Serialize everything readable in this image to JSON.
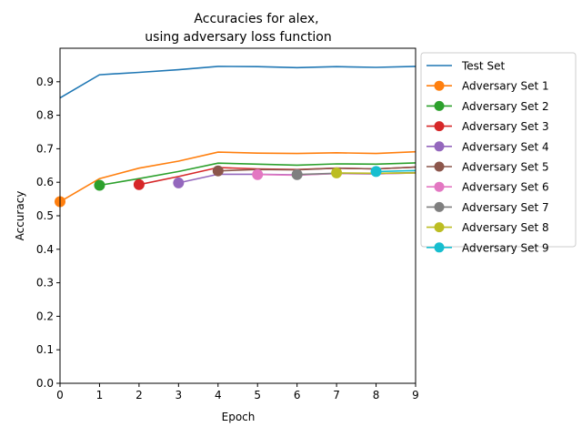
{
  "chart_data": {
    "type": "line",
    "title_line1": "Accuracies for alex,",
    "title_line2": "using adversary loss function",
    "xlabel": "Epoch",
    "ylabel": "Accuracy",
    "xlim": [
      0,
      9
    ],
    "ylim": [
      0,
      1.0
    ],
    "xticks": [
      "0",
      "1",
      "2",
      "3",
      "4",
      "5",
      "6",
      "7",
      "8",
      "9"
    ],
    "yticks": [
      "0.0",
      "0.1",
      "0.2",
      "0.3",
      "0.4",
      "0.5",
      "0.6",
      "0.7",
      "0.8",
      "0.9"
    ],
    "grid": false,
    "legend_position": "outside right, top",
    "series": [
      {
        "name": "Test Set",
        "color": "#1f77b4",
        "marker": false,
        "x": [
          0,
          1,
          2,
          3,
          4,
          5,
          6,
          7,
          8,
          9
        ],
        "y": [
          0.852,
          0.921,
          0.928,
          0.936,
          0.946,
          0.945,
          0.942,
          0.945,
          0.943,
          0.946
        ]
      },
      {
        "name": "Adversary Set 1",
        "color": "#ff7f0e",
        "marker": true,
        "x": [
          0,
          1,
          2,
          3,
          4,
          5,
          6,
          7,
          8,
          9
        ],
        "y": [
          0.542,
          0.611,
          0.642,
          0.663,
          0.69,
          0.687,
          0.686,
          0.688,
          0.686,
          0.691
        ]
      },
      {
        "name": "Adversary Set 2",
        "color": "#2ca02c",
        "marker": true,
        "x": [
          1,
          2,
          3,
          4,
          5,
          6,
          7,
          8,
          9
        ],
        "y": [
          0.591,
          0.611,
          0.632,
          0.657,
          0.654,
          0.651,
          0.655,
          0.654,
          0.658
        ]
      },
      {
        "name": "Adversary Set 3",
        "color": "#d62728",
        "marker": true,
        "x": [
          2,
          3,
          4,
          5,
          6,
          7,
          8,
          9
        ],
        "y": [
          0.593,
          0.617,
          0.644,
          0.64,
          0.638,
          0.642,
          0.64,
          0.645
        ]
      },
      {
        "name": "Adversary Set 4",
        "color": "#9467bd",
        "marker": true,
        "x": [
          3,
          4,
          5,
          6,
          7,
          8,
          9
        ],
        "y": [
          0.598,
          0.624,
          0.624,
          0.622,
          0.626,
          0.625,
          0.628
        ]
      },
      {
        "name": "Adversary Set 5",
        "color": "#8c564b",
        "marker": true,
        "x": [
          4,
          5,
          6,
          7,
          8,
          9
        ],
        "y": [
          0.634,
          0.638,
          0.637,
          0.642,
          0.64,
          0.645
        ]
      },
      {
        "name": "Adversary Set 6",
        "color": "#e377c2",
        "marker": true,
        "x": [
          5,
          6,
          7,
          8,
          9
        ],
        "y": [
          0.623,
          0.621,
          0.626,
          0.625,
          0.628
        ]
      },
      {
        "name": "Adversary Set 7",
        "color": "#7f7f7f",
        "marker": true,
        "x": [
          6,
          7,
          8,
          9
        ],
        "y": [
          0.623,
          0.627,
          0.626,
          0.629
        ]
      },
      {
        "name": "Adversary Set 8",
        "color": "#bcbd22",
        "marker": true,
        "x": [
          7,
          8,
          9
        ],
        "y": [
          0.628,
          0.627,
          0.628
        ]
      },
      {
        "name": "Adversary Set 9",
        "color": "#17becf",
        "marker": true,
        "x": [
          8,
          9
        ],
        "y": [
          0.632,
          0.635
        ]
      }
    ]
  }
}
